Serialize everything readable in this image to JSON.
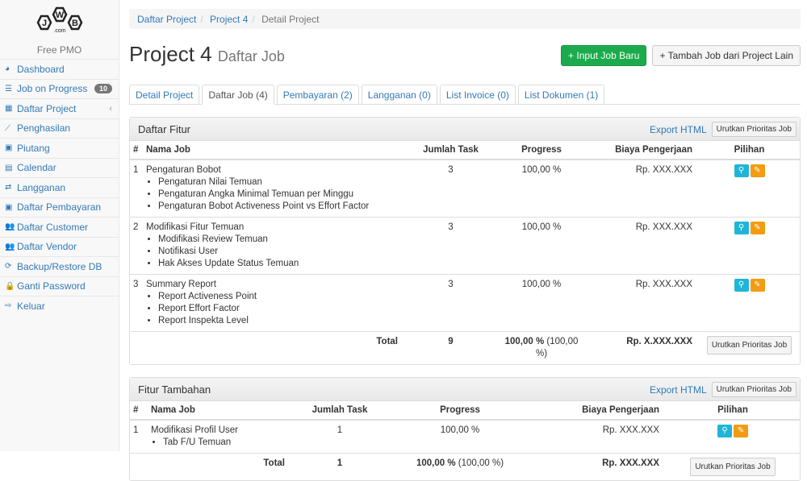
{
  "sidebar": {
    "logo_text": "JWB.com",
    "app_name": "Free PMO",
    "items": [
      {
        "label": "Dashboard",
        "icon": "dashboard-icon",
        "glyph": "◕"
      },
      {
        "label": "Job on Progress",
        "icon": "tasks-icon",
        "glyph": "☰",
        "badge": "10"
      },
      {
        "label": "Daftar Project",
        "icon": "table-icon",
        "glyph": "▦",
        "chevron": "‹"
      },
      {
        "label": "Penghasilan",
        "icon": "line-chart-icon",
        "glyph": "⟋"
      },
      {
        "label": "Piutang",
        "icon": "money-icon",
        "glyph": "▣"
      },
      {
        "label": "Calendar",
        "icon": "calendar-icon",
        "glyph": "▤"
      },
      {
        "label": "Langganan",
        "icon": "retweet-icon",
        "glyph": "⇄"
      },
      {
        "label": "Daftar Pembayaran",
        "icon": "money-icon",
        "glyph": "▣"
      },
      {
        "label": "Daftar Customer",
        "icon": "users-icon",
        "glyph": "👥"
      },
      {
        "label": "Daftar Vendor",
        "icon": "users-icon",
        "glyph": "👥"
      },
      {
        "label": "Backup/Restore DB",
        "icon": "refresh-icon",
        "glyph": "⟳"
      },
      {
        "label": "Ganti Password",
        "icon": "lock-icon",
        "glyph": "🔒"
      },
      {
        "label": "Keluar",
        "icon": "sign-out-icon",
        "glyph": "⇨"
      }
    ]
  },
  "breadcrumb": [
    "Daftar Project",
    "Project 4",
    "Detail Project"
  ],
  "header": {
    "title": "Project 4",
    "subtitle": "Daftar Job",
    "btn_input": "+ Input Job Baru",
    "btn_tambah": "+ Tambah Job dari Project Lain"
  },
  "tabs": [
    "Detail Project",
    "Daftar Job (4)",
    "Pembayaran (2)",
    "Langganan (0)",
    "List Invoice (0)",
    "List Dokumen (1)"
  ],
  "panel1": {
    "title": "Daftar Fitur",
    "export": "Export HTML",
    "sort": "Urutkan Prioritas Job",
    "headers": [
      "#",
      "Nama Job",
      "Jumlah Task",
      "Progress",
      "Biaya Pengerjaan",
      "Pilihan"
    ],
    "rows": [
      {
        "no": "1",
        "name": "Pengaturan Bobot",
        "tasks_list": [
          "Pengaturan Nilai Temuan",
          "Pengaturan Angka Minimal Temuan per Minggu",
          "Pengaturan Bobot Activeness Point vs Effort Factor"
        ],
        "count": "3",
        "progress": "100,00 %",
        "cost": "Rp. XXX.XXX"
      },
      {
        "no": "2",
        "name": "Modifikasi Fitur Temuan",
        "tasks_list": [
          "Modifikasi Review Temuan",
          "Notifikasi User",
          "Hak Akses Update Status Temuan"
        ],
        "count": "3",
        "progress": "100,00 %",
        "cost": "Rp. XXX.XXX"
      },
      {
        "no": "3",
        "name": "Summary Report",
        "tasks_list": [
          "Report Activeness Point",
          "Report Effort Factor",
          "Report Inspekta Level"
        ],
        "count": "3",
        "progress": "100,00 %",
        "cost": "Rp. XXX.XXX"
      }
    ],
    "total": {
      "label": "Total",
      "count": "9",
      "progress": "100,00 %",
      "progress_extra": "(100,00 %)",
      "cost": "Rp. X.XXX.XXX"
    }
  },
  "panel2": {
    "title": "Fitur Tambahan",
    "export": "Export HTML",
    "sort": "Urutkan Prioritas Job",
    "headers": [
      "#",
      "Nama Job",
      "Jumlah Task",
      "Progress",
      "Biaya Pengerjaan",
      "Pilihan"
    ],
    "rows": [
      {
        "no": "1",
        "name": "Modifikasi Profil User",
        "tasks_list": [
          "Tab F/U Temuan"
        ],
        "count": "1",
        "progress": "100,00 %",
        "cost": "Rp. XXX.XXX"
      }
    ],
    "total": {
      "label": "Total",
      "count": "1",
      "progress": "100,00 %",
      "progress_extra": "(100,00 %)",
      "cost": "Rp. XXX.XXX"
    }
  },
  "colors": {
    "link": "#337ab7",
    "success": "#1cab4c",
    "info": "#1fb5d8",
    "warning": "#f39c12"
  }
}
